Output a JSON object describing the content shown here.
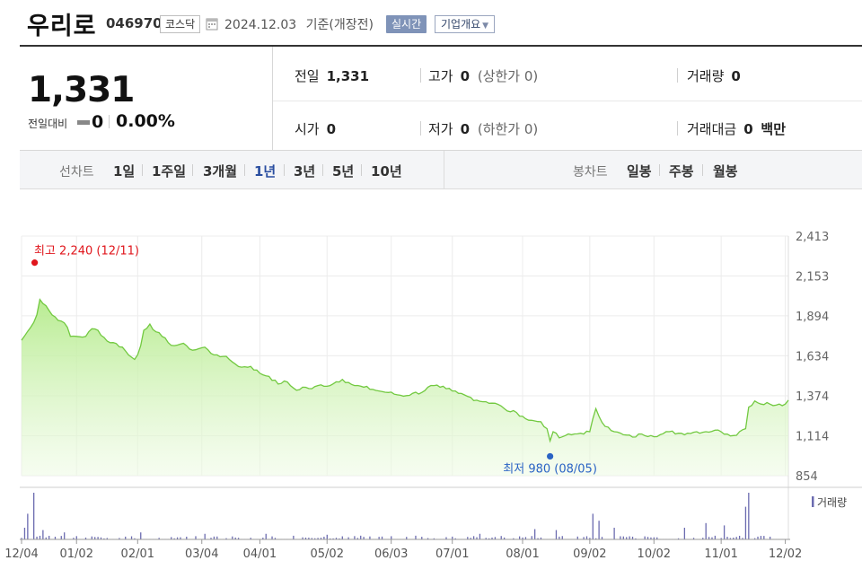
{
  "header": {
    "company_name": "우리로",
    "stock_code": "046970",
    "market": "코스닥",
    "date": "2024.12.03",
    "date_suffix": "기준(개장전)",
    "realtime_label": "실시간",
    "company_overview_label": "기업개요"
  },
  "summary": {
    "price": "1,331",
    "change_label": "전일대비",
    "change_value": "0",
    "change_rate": "0.00%",
    "stats": {
      "prev_close_label": "전일",
      "prev_close": "1,331",
      "high_label": "고가",
      "high": "0",
      "upper_limit_label": "상한가",
      "upper_limit": "0",
      "volume_label": "거래량",
      "volume": "0",
      "open_label": "시가",
      "open": "0",
      "low_label": "저가",
      "low": "0",
      "lower_limit_label": "하한가",
      "lower_limit": "0",
      "trade_value_label": "거래대금",
      "trade_value": "0",
      "trade_value_unit": "백만"
    }
  },
  "period_bar": {
    "line_chart_label": "선차트",
    "periods": [
      "1일",
      "1주일",
      "3개월",
      "1년",
      "3년",
      "5년",
      "10년"
    ],
    "active_period": "1년",
    "candle_chart_label": "봉차트",
    "candles": [
      "일봉",
      "주봉",
      "월봉"
    ]
  },
  "colors": {
    "accent": "#2a4ea0",
    "line": "#72c940",
    "high": "#e0161c",
    "low": "#2a63c4"
  },
  "chart_data": {
    "type": "area",
    "y_ticks": [
      "2,413",
      "2,153",
      "1,894",
      "1,634",
      "1,374",
      "1,114",
      "854"
    ],
    "y_tick_values": [
      2413,
      2153,
      1894,
      1634,
      1374,
      1114,
      854
    ],
    "ylim": [
      854,
      2413
    ],
    "x_labels": [
      "12/04",
      "01/02",
      "02/01",
      "03/04",
      "04/01",
      "05/02",
      "06/03",
      "07/01",
      "08/01",
      "09/02",
      "10/02",
      "11/01",
      "12/02"
    ],
    "x_label_index": [
      0,
      18,
      38,
      59,
      78,
      100,
      121,
      141,
      164,
      186,
      207,
      229,
      250
    ],
    "high_annotation": "최고 2,240 (12/11)",
    "low_annotation": "최저 980 (08/05)",
    "volume_legend": "거래량",
    "anchors": [
      [
        0,
        1735
      ],
      [
        3,
        1820
      ],
      [
        5,
        1900
      ],
      [
        6,
        2000
      ],
      [
        8,
        1960
      ],
      [
        10,
        1900
      ],
      [
        13,
        1860
      ],
      [
        15,
        1820
      ],
      [
        16,
        1760
      ],
      [
        18,
        1760
      ],
      [
        21,
        1760
      ],
      [
        23,
        1810
      ],
      [
        25,
        1800
      ],
      [
        28,
        1730
      ],
      [
        30,
        1720
      ],
      [
        33,
        1690
      ],
      [
        35,
        1640
      ],
      [
        37,
        1610
      ],
      [
        38,
        1640
      ],
      [
        39,
        1700
      ],
      [
        40,
        1800
      ],
      [
        42,
        1840
      ],
      [
        44,
        1790
      ],
      [
        46,
        1760
      ],
      [
        48,
        1720
      ],
      [
        50,
        1700
      ],
      [
        52,
        1710
      ],
      [
        54,
        1700
      ],
      [
        56,
        1670
      ],
      [
        58,
        1680
      ],
      [
        60,
        1690
      ],
      [
        62,
        1650
      ],
      [
        64,
        1640
      ],
      [
        66,
        1630
      ],
      [
        68,
        1610
      ],
      [
        70,
        1580
      ],
      [
        72,
        1560
      ],
      [
        75,
        1565
      ],
      [
        78,
        1520
      ],
      [
        81,
        1500
      ],
      [
        84,
        1450
      ],
      [
        86,
        1470
      ],
      [
        88,
        1440
      ],
      [
        90,
        1410
      ],
      [
        92,
        1430
      ],
      [
        95,
        1420
      ],
      [
        98,
        1445
      ],
      [
        101,
        1440
      ],
      [
        103,
        1465
      ],
      [
        105,
        1480
      ],
      [
        107,
        1460
      ],
      [
        109,
        1440
      ],
      [
        112,
        1430
      ],
      [
        115,
        1415
      ],
      [
        117,
        1405
      ],
      [
        120,
        1395
      ],
      [
        123,
        1380
      ],
      [
        126,
        1375
      ],
      [
        128,
        1390
      ],
      [
        131,
        1395
      ],
      [
        133,
        1430
      ],
      [
        135,
        1440
      ],
      [
        137,
        1430
      ],
      [
        139,
        1420
      ],
      [
        141,
        1405
      ],
      [
        143,
        1390
      ],
      [
        146,
        1370
      ],
      [
        149,
        1345
      ],
      [
        152,
        1335
      ],
      [
        155,
        1325
      ],
      [
        158,
        1290
      ],
      [
        160,
        1270
      ],
      [
        162,
        1265
      ],
      [
        164,
        1240
      ],
      [
        166,
        1215
      ],
      [
        168,
        1210
      ],
      [
        170,
        1205
      ],
      [
        172,
        1160
      ],
      [
        173,
        1080
      ],
      [
        174,
        1140
      ],
      [
        176,
        1100
      ],
      [
        178,
        1115
      ],
      [
        180,
        1120
      ],
      [
        183,
        1130
      ],
      [
        186,
        1140
      ],
      [
        188,
        1290
      ],
      [
        190,
        1200
      ],
      [
        192,
        1170
      ],
      [
        194,
        1140
      ],
      [
        197,
        1120
      ],
      [
        200,
        1105
      ],
      [
        203,
        1125
      ],
      [
        206,
        1115
      ],
      [
        209,
        1120
      ],
      [
        212,
        1140
      ],
      [
        215,
        1130
      ],
      [
        218,
        1130
      ],
      [
        221,
        1140
      ],
      [
        224,
        1140
      ],
      [
        227,
        1150
      ],
      [
        229,
        1140
      ],
      [
        231,
        1125
      ],
      [
        233,
        1115
      ],
      [
        235,
        1140
      ],
      [
        237,
        1160
      ],
      [
        238,
        1300
      ],
      [
        240,
        1340
      ],
      [
        242,
        1320
      ],
      [
        244,
        1330
      ],
      [
        246,
        1310
      ],
      [
        248,
        1320
      ],
      [
        250,
        1320
      ],
      [
        251,
        1345
      ]
    ],
    "volume_spikes": [
      [
        1,
        0.25
      ],
      [
        2,
        0.55
      ],
      [
        4,
        1.0
      ],
      [
        7,
        0.2
      ],
      [
        14,
        0.15
      ],
      [
        39,
        0.15
      ],
      [
        60,
        0.12
      ],
      [
        80,
        0.12
      ],
      [
        100,
        0.1
      ],
      [
        150,
        0.12
      ],
      [
        168,
        0.22
      ],
      [
        175,
        0.2
      ],
      [
        187,
        0.55
      ],
      [
        189,
        0.4
      ],
      [
        194,
        0.25
      ],
      [
        217,
        0.25
      ],
      [
        224,
        0.35
      ],
      [
        230,
        0.3
      ],
      [
        237,
        0.7
      ],
      [
        238,
        1.0
      ]
    ]
  }
}
